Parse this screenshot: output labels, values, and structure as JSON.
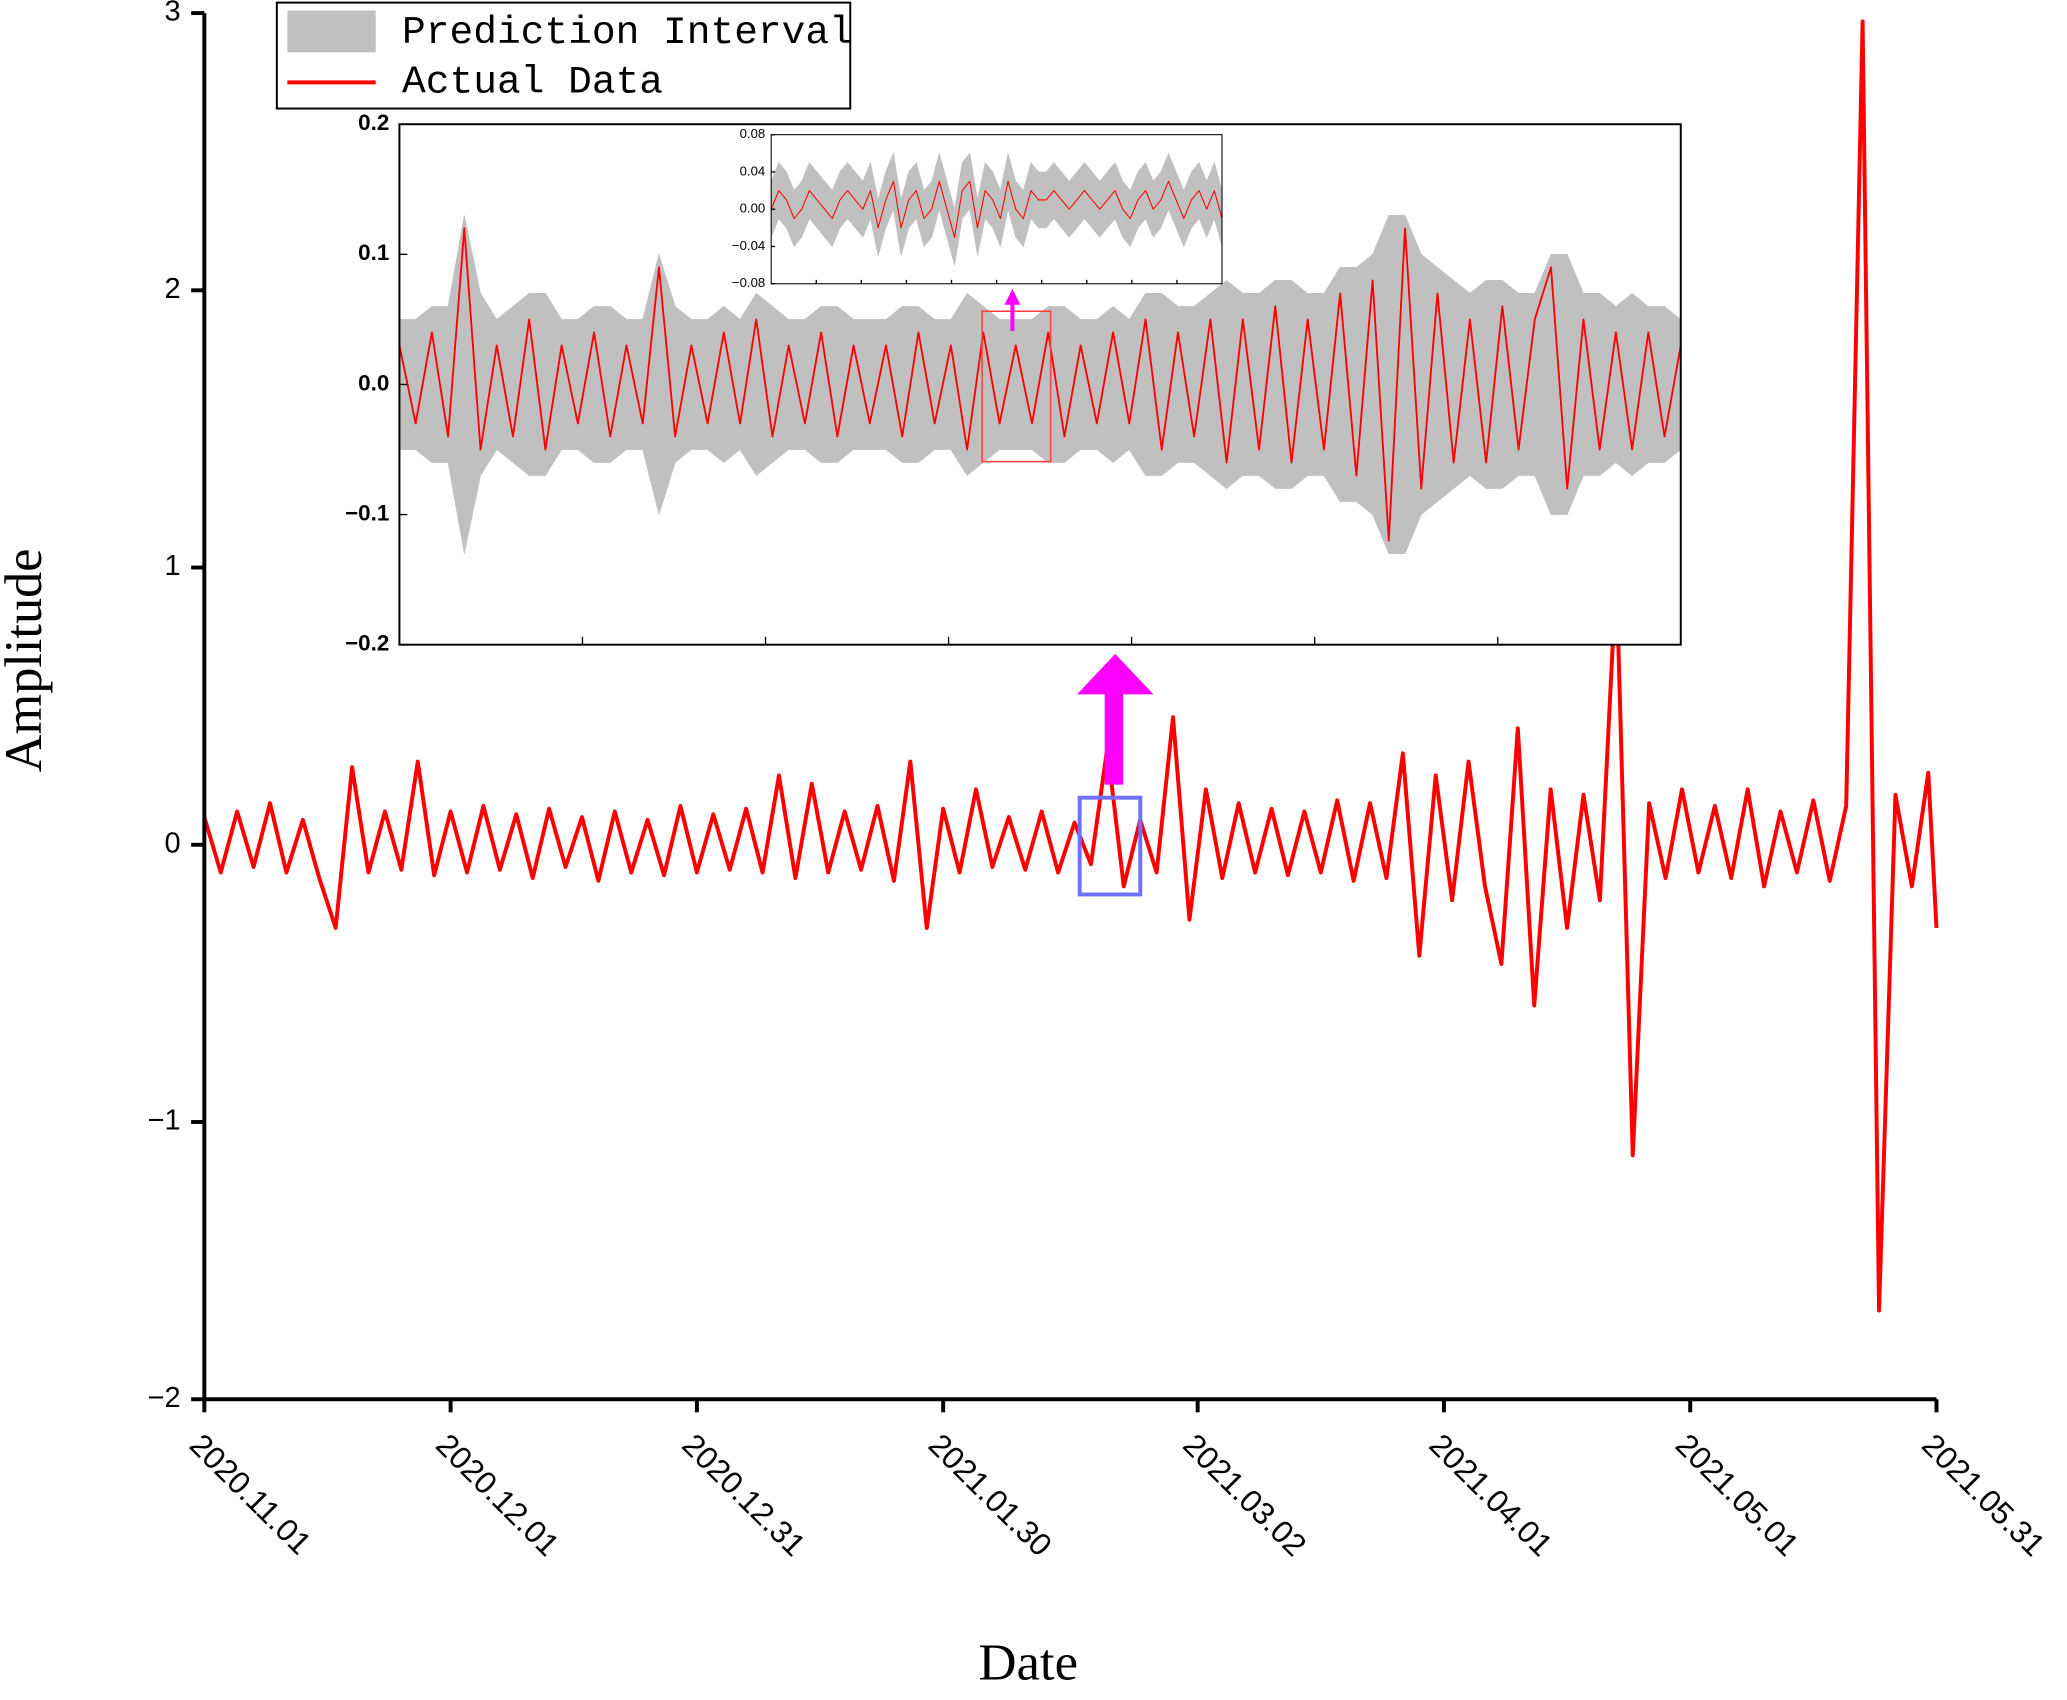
{
  "chart_data": [
    {
      "type": "line",
      "xlabel": "Date",
      "ylabel": "Amplitude",
      "xlim": [
        "2020.11.01",
        "2021.05.31"
      ],
      "xticks": [
        "2020.11.01",
        "2020.12.01",
        "2020.12.31",
        "2021.01.30",
        "2021.03.02",
        "2021.04.01",
        "2021.05.01",
        "2021.05.31"
      ],
      "ylim": [
        -2,
        3
      ],
      "yticks": [
        {
          "value": -2,
          "label": "−2"
        },
        {
          "value": -1,
          "label": "−1"
        },
        0,
        1,
        2,
        3
      ],
      "band": {
        "name": "Prediction Interval",
        "color": "#c0c0c0"
      },
      "x": [
        "2020.11.01",
        "2020.11.03",
        "2020.11.05",
        "2020.11.07",
        "2020.11.09",
        "2020.11.11",
        "2020.11.13",
        "2020.11.15",
        "2020.11.17",
        "2020.11.19",
        "2020.11.21",
        "2020.11.23",
        "2020.11.25",
        "2020.11.27",
        "2020.11.29",
        "2020.12.01",
        "2020.12.03",
        "2020.12.05",
        "2020.12.07",
        "2020.12.09",
        "2020.12.11",
        "2020.12.13",
        "2020.12.15",
        "2020.12.17",
        "2020.12.19",
        "2020.12.21",
        "2020.12.23",
        "2020.12.25",
        "2020.12.27",
        "2020.12.29",
        "2020.12.31",
        "2021.01.02",
        "2021.01.04",
        "2021.01.06",
        "2021.01.08",
        "2021.01.10",
        "2021.01.12",
        "2021.01.14",
        "2021.01.16",
        "2021.01.18",
        "2021.01.20",
        "2021.01.22",
        "2021.01.24",
        "2021.01.26",
        "2021.01.28",
        "2021.01.30",
        "2021.02.01",
        "2021.02.03",
        "2021.02.05",
        "2021.02.07",
        "2021.02.09",
        "2021.02.11",
        "2021.02.13",
        "2021.02.15",
        "2021.02.17",
        "2021.02.19",
        "2021.02.21",
        "2021.02.23",
        "2021.02.25",
        "2021.02.27",
        "2021.03.01",
        "2021.03.03",
        "2021.03.05",
        "2021.03.07",
        "2021.03.09",
        "2021.03.11",
        "2021.03.13",
        "2021.03.15",
        "2021.03.17",
        "2021.03.19",
        "2021.03.21",
        "2021.03.23",
        "2021.03.25",
        "2021.03.27",
        "2021.03.29",
        "2021.03.31",
        "2021.04.02",
        "2021.04.04",
        "2021.04.06",
        "2021.04.08",
        "2021.04.10",
        "2021.04.12",
        "2021.04.14",
        "2021.04.16",
        "2021.04.18",
        "2021.04.20",
        "2021.04.22",
        "2021.04.24",
        "2021.04.26",
        "2021.04.28",
        "2021.04.30",
        "2021.05.02",
        "2021.05.04",
        "2021.05.06",
        "2021.05.08",
        "2021.05.10",
        "2021.05.12",
        "2021.05.14",
        "2021.05.16",
        "2021.05.18",
        "2021.05.20",
        "2021.05.22",
        "2021.05.24",
        "2021.05.26",
        "2021.05.28",
        "2021.05.30",
        "2021.05.31"
      ],
      "series": [
        {
          "name": "Actual Data",
          "color": "#ff0000",
          "values": [
            0.1,
            -0.1,
            0.12,
            -0.08,
            0.15,
            -0.1,
            0.09,
            -0.12,
            -0.3,
            0.28,
            -0.1,
            0.12,
            -0.09,
            0.3,
            -0.11,
            0.12,
            -0.1,
            0.14,
            -0.09,
            0.11,
            -0.12,
            0.13,
            -0.08,
            0.1,
            -0.13,
            0.12,
            -0.1,
            0.09,
            -0.11,
            0.14,
            -0.1,
            0.11,
            -0.09,
            0.13,
            -0.1,
            0.25,
            -0.12,
            0.22,
            -0.1,
            0.12,
            -0.09,
            0.14,
            -0.13,
            0.3,
            -0.3,
            0.13,
            -0.1,
            0.2,
            -0.08,
            0.1,
            -0.09,
            0.12,
            -0.1,
            0.08,
            -0.07,
            0.35,
            -0.15,
            0.09,
            -0.1,
            0.46,
            -0.27,
            0.2,
            -0.12,
            0.15,
            -0.1,
            0.13,
            -0.11,
            0.12,
            -0.1,
            0.16,
            -0.13,
            0.15,
            -0.12,
            0.33,
            -0.4,
            0.25,
            -0.2,
            0.3,
            -0.15,
            -0.43,
            0.42,
            -0.58,
            0.2,
            -0.3,
            0.18,
            -0.2,
            0.98,
            -1.12,
            0.15,
            -0.12,
            0.2,
            -0.1,
            0.14,
            -0.12,
            0.2,
            -0.15,
            0.12,
            -0.1,
            0.16,
            -0.13,
            0.14,
            2.97,
            -1.68,
            0.18,
            -0.15,
            0.26,
            -0.3
          ]
        }
      ]
    },
    {
      "type": "line",
      "ylim": [
        -0.2,
        0.2
      ],
      "yticks": [
        {
          "value": -0.2,
          "label": "−0.2"
        },
        {
          "value": -0.1,
          "label": "−0.1"
        },
        {
          "value": 0,
          "label": "0.0"
        },
        0.1,
        0.2
      ],
      "band": {
        "color": "#c0c0c0",
        "upper": [
          0.05,
          0.05,
          0.06,
          0.06,
          0.13,
          0.07,
          0.05,
          0.06,
          0.07,
          0.07,
          0.05,
          0.05,
          0.06,
          0.06,
          0.05,
          0.05,
          0.1,
          0.06,
          0.05,
          0.05,
          0.06,
          0.05,
          0.07,
          0.06,
          0.05,
          0.05,
          0.06,
          0.06,
          0.05,
          0.05,
          0.05,
          0.06,
          0.06,
          0.05,
          0.05,
          0.07,
          0.06,
          0.05,
          0.05,
          0.05,
          0.06,
          0.06,
          0.05,
          0.05,
          0.06,
          0.05,
          0.07,
          0.07,
          0.06,
          0.06,
          0.07,
          0.08,
          0.07,
          0.07,
          0.08,
          0.08,
          0.07,
          0.07,
          0.09,
          0.09,
          0.1,
          0.13,
          0.13,
          0.1,
          0.09,
          0.08,
          0.07,
          0.08,
          0.08,
          0.07,
          0.07,
          0.1,
          0.1,
          0.07,
          0.07,
          0.06,
          0.07,
          0.06,
          0.06,
          0.05
        ],
        "lower": [
          -0.05,
          -0.05,
          -0.06,
          -0.06,
          -0.13,
          -0.07,
          -0.05,
          -0.06,
          -0.07,
          -0.07,
          -0.05,
          -0.05,
          -0.06,
          -0.06,
          -0.05,
          -0.05,
          -0.1,
          -0.06,
          -0.05,
          -0.05,
          -0.06,
          -0.05,
          -0.07,
          -0.06,
          -0.05,
          -0.05,
          -0.06,
          -0.06,
          -0.05,
          -0.05,
          -0.05,
          -0.06,
          -0.06,
          -0.05,
          -0.05,
          -0.07,
          -0.06,
          -0.05,
          -0.05,
          -0.05,
          -0.06,
          -0.06,
          -0.05,
          -0.05,
          -0.06,
          -0.05,
          -0.07,
          -0.07,
          -0.06,
          -0.06,
          -0.07,
          -0.08,
          -0.07,
          -0.07,
          -0.08,
          -0.08,
          -0.07,
          -0.07,
          -0.09,
          -0.09,
          -0.1,
          -0.13,
          -0.13,
          -0.1,
          -0.09,
          -0.08,
          -0.07,
          -0.08,
          -0.08,
          -0.07,
          -0.07,
          -0.1,
          -0.1,
          -0.07,
          -0.07,
          -0.06,
          -0.07,
          -0.06,
          -0.06,
          -0.05
        ]
      },
      "series": [
        {
          "color": "#ff0000",
          "values": [
            0.03,
            -0.03,
            0.04,
            -0.04,
            0.12,
            -0.05,
            0.03,
            -0.04,
            0.05,
            -0.05,
            0.03,
            -0.03,
            0.04,
            -0.04,
            0.03,
            -0.03,
            0.09,
            -0.04,
            0.03,
            -0.03,
            0.04,
            -0.03,
            0.05,
            -0.04,
            0.03,
            -0.03,
            0.04,
            -0.04,
            0.03,
            -0.03,
            0.03,
            -0.04,
            0.04,
            -0.03,
            0.03,
            -0.05,
            0.04,
            -0.03,
            0.03,
            -0.03,
            0.04,
            -0.04,
            0.03,
            -0.03,
            0.04,
            -0.03,
            0.05,
            -0.05,
            0.04,
            -0.04,
            0.05,
            -0.06,
            0.05,
            -0.05,
            0.06,
            -0.06,
            0.05,
            -0.05,
            0.07,
            -0.07,
            0.08,
            -0.12,
            0.12,
            -0.08,
            0.07,
            -0.06,
            0.05,
            -0.06,
            0.06,
            -0.05,
            0.05,
            0.09,
            -0.08,
            0.05,
            -0.05,
            0.04,
            -0.05,
            0.04,
            -0.04,
            0.03
          ]
        }
      ]
    },
    {
      "type": "line",
      "ylim": [
        -0.08,
        0.08
      ],
      "yticks": [
        {
          "value": -0.08,
          "label": "−0.08"
        },
        {
          "value": -0.04,
          "label": "−0.04"
        },
        {
          "value": 0,
          "label": "0.00"
        },
        0.04,
        0.08
      ],
      "band": {
        "color": "#c0c0c0",
        "upper": [
          0.03,
          0.05,
          0.04,
          0.02,
          0.03,
          0.05,
          0.04,
          0.03,
          0.02,
          0.04,
          0.05,
          0.04,
          0.03,
          0.05,
          0.01,
          0.04,
          0.06,
          0.01,
          0.04,
          0.05,
          0.02,
          0.03,
          0.06,
          0.03,
          0,
          0.05,
          0.06,
          0.01,
          0.05,
          0.04,
          0.02,
          0.06,
          0.03,
          0.02,
          0.05,
          0.04,
          0.04,
          0.05,
          0.04,
          0.03,
          0.04,
          0.05,
          0.04,
          0.03,
          0.04,
          0.05,
          0.03,
          0.02,
          0.04,
          0.05,
          0.03,
          0.04,
          0.06,
          0.04,
          0.02,
          0.04,
          0.05,
          0.03,
          0.05,
          0.02
        ],
        "lower": [
          -0.03,
          -0.01,
          -0.02,
          -0.04,
          -0.03,
          -0.01,
          -0.02,
          -0.03,
          -0.04,
          -0.02,
          -0.01,
          -0.02,
          -0.03,
          -0.01,
          -0.05,
          -0.02,
          0,
          -0.05,
          -0.02,
          -0.01,
          -0.04,
          -0.03,
          0,
          -0.03,
          -0.06,
          -0.01,
          0,
          -0.05,
          -0.01,
          -0.02,
          -0.04,
          0,
          -0.03,
          -0.04,
          -0.01,
          -0.02,
          -0.02,
          -0.01,
          -0.02,
          -0.03,
          -0.02,
          -0.01,
          -0.02,
          -0.03,
          -0.02,
          -0.01,
          -0.03,
          -0.04,
          -0.02,
          -0.01,
          -0.03,
          -0.02,
          0,
          -0.02,
          -0.04,
          -0.02,
          -0.01,
          -0.03,
          -0.01,
          -0.04
        ]
      },
      "series": [
        {
          "color": "#ff0000",
          "values": [
            0,
            0.02,
            0.01,
            -0.01,
            0,
            0.02,
            0.01,
            0,
            -0.01,
            0.01,
            0.02,
            0.01,
            0,
            0.02,
            -0.02,
            0.01,
            0.03,
            -0.02,
            0.01,
            0.02,
            -0.01,
            0,
            0.03,
            0,
            -0.03,
            0.02,
            0.03,
            -0.02,
            0.02,
            0.01,
            -0.01,
            0.03,
            0,
            -0.01,
            0.02,
            0.01,
            0.01,
            0.02,
            0.01,
            0,
            0.01,
            0.02,
            0.01,
            0,
            0.01,
            0.02,
            0,
            -0.01,
            0.01,
            0.02,
            0,
            0.01,
            0.03,
            0.01,
            -0.01,
            0.01,
            0.02,
            0,
            0.02,
            -0.01
          ]
        }
      ]
    }
  ]
}
